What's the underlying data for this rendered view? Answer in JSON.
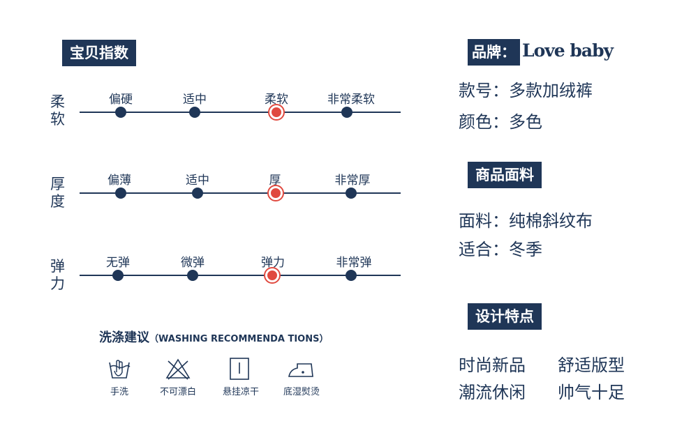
{
  "colors": {
    "navy": "#1f3657",
    "selected": "#e0493f"
  },
  "index": {
    "title": "宝贝指数",
    "rows": [
      {
        "label": "柔软",
        "options": [
          "偏硬",
          "适中",
          "柔软",
          "非常柔软"
        ],
        "selected": "柔软"
      },
      {
        "label": "厚度",
        "options": [
          "偏薄",
          "适中",
          "厚",
          "非常厚"
        ],
        "selected": "厚"
      },
      {
        "label": "弹力",
        "options": [
          "无弹",
          "微弹",
          "弹力",
          "非常弹"
        ],
        "selected": "弹力"
      }
    ]
  },
  "washing": {
    "title": "洗涤建议",
    "title_en": "（WASHING RECOMMENDA TIONS）",
    "items": [
      {
        "icon": "hand-wash-icon",
        "label": "手洗"
      },
      {
        "icon": "no-bleach-icon",
        "label": "不可漂白"
      },
      {
        "icon": "hang-dry-icon",
        "label": "悬挂凉干"
      },
      {
        "icon": "low-iron-icon",
        "label": "底湿熨烫"
      }
    ]
  },
  "brand": {
    "label": "品牌：",
    "name": "Love baby"
  },
  "product": {
    "model": "款号：多款加绒裤",
    "color": "颜色：多色"
  },
  "fabric": {
    "title": "商品面料",
    "material": "面料：纯棉斜纹布",
    "season": "适合：冬季"
  },
  "design": {
    "title": "设计特点",
    "features": [
      "时尚新品",
      "舒适版型",
      "潮流休闲",
      "帅气十足"
    ]
  }
}
